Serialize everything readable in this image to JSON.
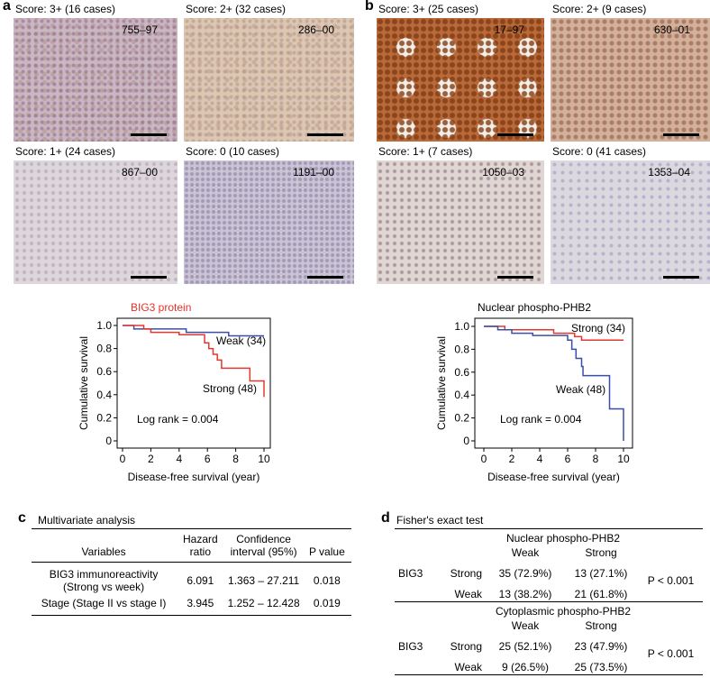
{
  "panel_a": {
    "letter": "a",
    "images": [
      {
        "score": "Score: 3+ (16 cases)",
        "id": "755–97"
      },
      {
        "score": "Score: 2+ (32 cases)",
        "id": "286–00"
      },
      {
        "score": "Score: 1+ (24 cases)",
        "id": "867–00"
      },
      {
        "score": "Score: 0 (10 cases)",
        "id": "1191–00"
      }
    ]
  },
  "panel_b": {
    "letter": "b",
    "images": [
      {
        "score": "Score: 3+ (25 cases)",
        "id": "17–97"
      },
      {
        "score": "Score: 2+ (9 cases)",
        "id": "630–01"
      },
      {
        "score": "Score: 1+ (7 cases)",
        "id": "1050–03"
      },
      {
        "score": "Score: 0 (41 cases)",
        "id": "1353–04"
      }
    ]
  },
  "chart_data": [
    {
      "type": "line",
      "title": "BIG3 protein",
      "title_color": "#e8302a",
      "ylabel": "Cumulative survival",
      "xlabel": "Disease-free survival (year)",
      "annotation": "Log rank = 0.004",
      "xlim": [
        0,
        10
      ],
      "xticks": [
        0,
        2,
        4,
        6,
        8,
        10
      ],
      "ylim": [
        0,
        1
      ],
      "yticks": [
        0,
        0.2,
        0.4,
        0.6,
        0.8,
        {
          "value": 1,
          "label": "1.0"
        }
      ],
      "series": [
        {
          "name": "Weak (34)",
          "color": "#3b4ea8",
          "x": [
            0,
            0.8,
            0.8,
            4.5,
            4.5,
            7.5,
            7.5,
            10
          ],
          "values": [
            1,
            1,
            0.97,
            0.97,
            0.94,
            0.94,
            0.91,
            0.91
          ]
        },
        {
          "name": "Strong (48)",
          "color": "#e03a30",
          "x": [
            0,
            1.5,
            1.5,
            2,
            2,
            4,
            4,
            5.8,
            5.8,
            6.1,
            6.1,
            6.4,
            6.4,
            6.7,
            6.7,
            7,
            7,
            9,
            9,
            10,
            10
          ],
          "values": [
            1,
            1,
            0.97,
            0.97,
            0.94,
            0.94,
            0.92,
            0.92,
            0.85,
            0.85,
            0.8,
            0.8,
            0.75,
            0.75,
            0.7,
            0.7,
            0.63,
            0.63,
            0.52,
            0.52,
            0.38
          ]
        }
      ]
    },
    {
      "type": "line",
      "title": "Nuclear phospho-PHB2",
      "title_color": "#000000",
      "ylabel": "Cumulative survival",
      "xlabel": "Disease-free survival (year)",
      "annotation": "Log rank = 0.004",
      "xlim": [
        0,
        10
      ],
      "xticks": [
        0,
        2,
        4,
        6,
        8,
        10
      ],
      "ylim": [
        0,
        1
      ],
      "yticks": [
        0,
        0.2,
        0.4,
        0.6,
        0.8,
        {
          "value": 1,
          "label": "1.0"
        }
      ],
      "series": [
        {
          "name": "Strong (34)",
          "color": "#e03a30",
          "x": [
            0,
            1.5,
            1.5,
            5,
            5,
            6.5,
            6.5,
            7,
            7,
            10
          ],
          "values": [
            1,
            1,
            0.97,
            0.97,
            0.94,
            0.94,
            0.91,
            0.91,
            0.88,
            0.88
          ]
        },
        {
          "name": "Weak (48)",
          "color": "#3b4ea8",
          "x": [
            0,
            1,
            1,
            2,
            2,
            3.5,
            3.5,
            6,
            6,
            6.3,
            6.3,
            6.6,
            6.6,
            7,
            7,
            7.1,
            7.1,
            9,
            9,
            10,
            10
          ],
          "values": [
            1,
            1,
            0.97,
            0.97,
            0.94,
            0.94,
            0.92,
            0.92,
            0.88,
            0.88,
            0.8,
            0.8,
            0.72,
            0.72,
            0.65,
            0.65,
            0.57,
            0.57,
            0.28,
            0.28,
            0
          ]
        }
      ]
    }
  ],
  "table_c": {
    "letter": "c",
    "title": "Multivariate analysis",
    "headers": [
      "Variables",
      "Hazard ratio",
      "Confidence interval (95%)",
      "P value"
    ],
    "rows": [
      [
        "BIG3 immunoreactivity (Strong vs week)",
        "6.091",
        "1.363 – 27.211",
        "0.018"
      ],
      [
        "Stage (Stage II vs stage I)",
        "3.945",
        "1.252 – 12.428",
        "0.019"
      ]
    ]
  },
  "table_d": {
    "letter": "d",
    "title": "Fisher's exact test",
    "blocks": [
      {
        "heading": "Nuclear phospho-PHB2",
        "columns": [
          "Weak",
          "Strong"
        ],
        "group": "BIG3",
        "rows": [
          {
            "label": "Strong",
            "cells": [
              "35 (72.9%)",
              "13 (27.1%)"
            ]
          },
          {
            "label": "Weak",
            "cells": [
              "13 (38.2%)",
              "21 (61.8%)"
            ]
          }
        ],
        "p": "P < 0.001"
      },
      {
        "heading": "Cytoplasmic phospho-PHB2",
        "columns": [
          "Weak",
          "Strong"
        ],
        "group": "BIG3",
        "rows": [
          {
            "label": "Strong",
            "cells": [
              "25 (52.1%)",
              "23 (47.9%)"
            ]
          },
          {
            "label": "Weak",
            "cells": [
              "9 (26.5%)",
              "25 (73.5%)"
            ]
          }
        ],
        "p": "P < 0.001"
      }
    ]
  }
}
